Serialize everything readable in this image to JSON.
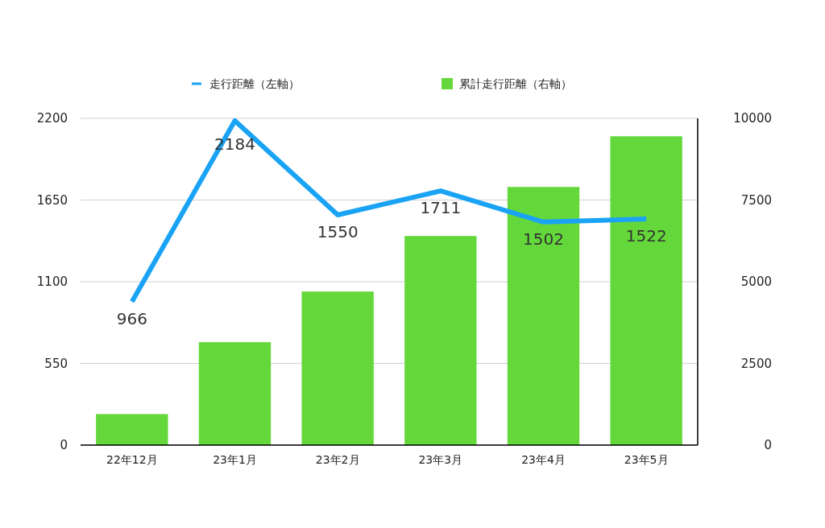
{
  "chart_data": {
    "type": "bar",
    "categories": [
      "22年12月",
      "23年1月",
      "23年2月",
      "23年3月",
      "23年4月",
      "23年5月"
    ],
    "series": [
      {
        "name": "走行距離（左軸）",
        "type": "line",
        "color": "#1aa3f5",
        "values": [
          966,
          2184,
          1550,
          1711,
          1502,
          1522
        ],
        "value_labels": [
          "966",
          "2184",
          "1550",
          "1711",
          "1502",
          "1522"
        ]
      },
      {
        "name": "累計走行距離（右軸）",
        "axis": "y2",
        "color": "#64d83b",
        "values": [
          950,
          3150,
          4700,
          6400,
          7900,
          9450
        ]
      }
    ],
    "ylim": [
      0,
      2200
    ],
    "yticks": [
      0,
      550,
      1100,
      1650,
      2200
    ],
    "y2lim": [
      0,
      10000
    ],
    "y2ticks": [
      0,
      2500,
      5000,
      7500,
      10000
    ],
    "grid": "y",
    "legend": "top",
    "marker": "none"
  }
}
